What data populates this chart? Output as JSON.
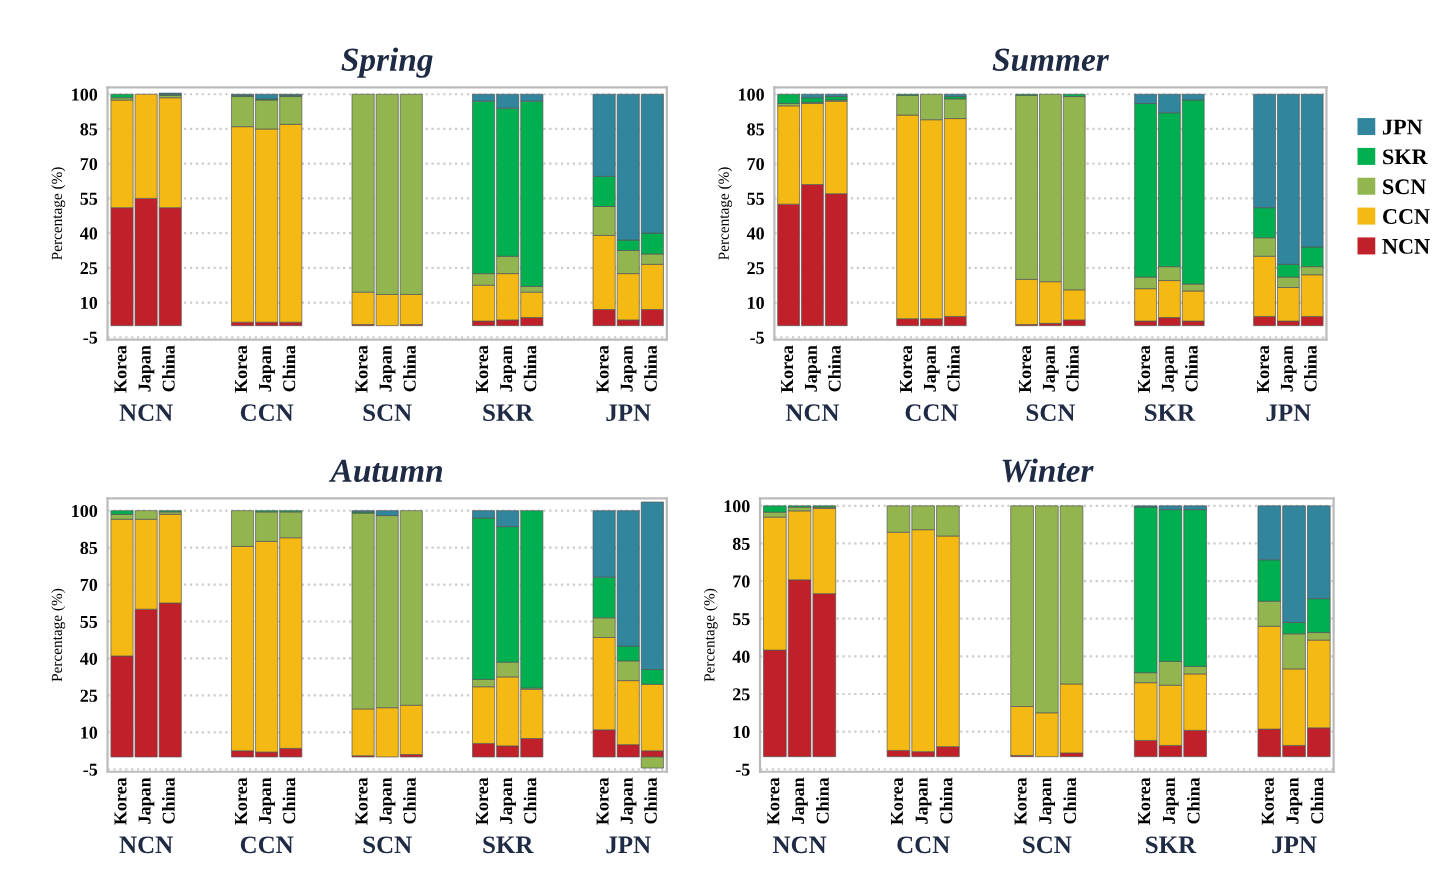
{
  "chart_data": [
    {
      "type": "bar",
      "stacked": true,
      "title": "Spring",
      "ylabel": "Percentage (%)",
      "ylim": [
        -6,
        103
      ],
      "yticks": [
        -5,
        10,
        25,
        40,
        55,
        70,
        85,
        100
      ],
      "grid": "y",
      "legend": false,
      "categories": [
        "Korea",
        "Japan",
        "China",
        null,
        null,
        "Korea",
        "Japan",
        "China",
        null,
        null,
        "Korea",
        "Japan",
        "China",
        null,
        null,
        "Korea",
        "Japan",
        "China",
        null,
        null,
        "Korea",
        "Japan",
        "China"
      ],
      "annotations": [
        "NCN",
        "CCN",
        "SCN",
        "SKR",
        "JPN"
      ],
      "series": [
        {
          "color": "#c0202a",
          "values": [
            51,
            55,
            51,
            null,
            null,
            1.5,
            1.5,
            1.5,
            null,
            null,
            0.5,
            0,
            0.5,
            null,
            null,
            2,
            2.5,
            3.5,
            null,
            null,
            7,
            2.5,
            7
          ]
        },
        {
          "color": "#f5b914",
          "values": [
            46.5,
            45,
            47.5,
            null,
            null,
            84.5,
            83.5,
            85.5,
            null,
            null,
            14,
            13.5,
            13,
            null,
            null,
            15.5,
            20,
            11,
            null,
            null,
            32,
            20,
            19.5
          ]
        },
        {
          "color": "#92b550",
          "values": [
            1,
            0,
            1,
            null,
            null,
            13,
            12.5,
            12,
            null,
            null,
            85.5,
            86.5,
            86.5,
            null,
            null,
            5,
            7.5,
            2.5,
            null,
            null,
            12.5,
            10,
            4.5
          ]
        },
        {
          "color": "#00b050",
          "values": [
            1.5,
            0,
            0.5,
            null,
            null,
            0.5,
            0.5,
            0.5,
            null,
            null,
            0,
            0,
            0,
            null,
            null,
            74.5,
            64,
            80,
            null,
            null,
            13,
            4.5,
            9
          ]
        },
        {
          "color": "#31859c",
          "values": [
            0,
            0,
            0.5,
            null,
            null,
            0.5,
            2,
            0.5,
            null,
            null,
            0,
            0,
            0,
            null,
            null,
            3,
            6,
            3,
            null,
            null,
            35.5,
            63,
            60
          ]
        }
      ]
    },
    {
      "type": "bar",
      "stacked": true,
      "title": "Summer",
      "ylabel": "Percentage (%)",
      "ylim": [
        -6,
        103
      ],
      "yticks": [
        -5,
        10,
        25,
        40,
        55,
        70,
        85,
        100
      ],
      "grid": "y",
      "legend": "right",
      "categories": [
        "Korea",
        "Japan",
        "China",
        null,
        null,
        "Korea",
        "Japan",
        "China",
        null,
        null,
        "Korea",
        "Japan",
        "China",
        null,
        null,
        "Korea",
        "Japan",
        "China",
        null,
        null,
        "Korea",
        "Japan",
        "China"
      ],
      "annotations": [
        "NCN",
        "CCN",
        "SCN",
        "SKR",
        "JPN"
      ],
      "series": [
        {
          "name": "NCN",
          "color": "#c0202a",
          "values": [
            52.5,
            61,
            57,
            null,
            null,
            3,
            3,
            4,
            null,
            null,
            0.5,
            1,
            2.5,
            null,
            null,
            2,
            3.5,
            2,
            null,
            null,
            4,
            2,
            4
          ]
        },
        {
          "name": "CCN",
          "color": "#f5b914",
          "values": [
            42.5,
            35,
            40,
            null,
            null,
            88,
            86,
            85.5,
            null,
            null,
            19.5,
            18,
            13,
            null,
            null,
            14,
            16,
            13,
            null,
            null,
            26,
            14.5,
            18
          ]
        },
        {
          "name": "SCN",
          "color": "#92b550",
          "values": [
            1,
            0.5,
            0.5,
            null,
            null,
            8.5,
            11,
            8.5,
            null,
            null,
            79.5,
            81,
            83.5,
            null,
            null,
            5,
            6,
            3,
            null,
            null,
            8,
            4.5,
            3.5
          ]
        },
        {
          "name": "SKR",
          "color": "#00b050",
          "values": [
            4,
            2,
            1.5,
            null,
            null,
            0.5,
            0,
            1,
            null,
            null,
            0.5,
            0,
            1,
            null,
            null,
            75,
            66.5,
            79.5,
            null,
            null,
            13,
            5.5,
            8.5
          ]
        },
        {
          "name": "JPN",
          "color": "#31859c",
          "values": [
            0,
            1.5,
            1,
            null,
            null,
            0,
            0,
            1,
            null,
            null,
            0,
            0,
            0,
            null,
            null,
            4,
            8,
            2.5,
            null,
            null,
            49,
            73.5,
            66
          ]
        }
      ]
    },
    {
      "type": "bar",
      "stacked": true,
      "title": "Autumn",
      "ylabel": "Percentage (%)",
      "ylim": [
        -6,
        105
      ],
      "yticks": [
        -5,
        10,
        25,
        40,
        55,
        70,
        85,
        100
      ],
      "grid": "y",
      "legend": false,
      "categories": [
        "Korea",
        "Japan",
        "China",
        null,
        null,
        "Korea",
        "Japan",
        "China",
        null,
        null,
        "Korea",
        "Japan",
        "China",
        null,
        null,
        "Korea",
        "Japan",
        "China",
        null,
        null,
        "Korea",
        "Japan",
        "China"
      ],
      "annotations": [
        "NCN",
        "CCN",
        "SCN",
        "SKR",
        "JPN"
      ],
      "series": [
        {
          "color": "#c0202a",
          "values": [
            41,
            60,
            62.5,
            null,
            null,
            2.5,
            2,
            3.5,
            null,
            null,
            0.5,
            0,
            1,
            null,
            null,
            5.5,
            4.5,
            7.5,
            null,
            null,
            11,
            5,
            2.5
          ]
        },
        {
          "color": "#f5b914",
          "values": [
            55.5,
            36.5,
            36,
            null,
            null,
            83,
            85.5,
            85.5,
            null,
            null,
            19,
            20,
            20,
            null,
            null,
            23,
            28,
            20,
            null,
            null,
            37.5,
            26,
            27
          ]
        },
        {
          "color": "#92b550",
          "values": [
            2,
            3.5,
            1,
            null,
            null,
            14.5,
            12,
            10.5,
            null,
            null,
            79.5,
            78,
            79,
            null,
            null,
            3,
            6,
            0.5,
            null,
            null,
            8,
            8,
            -4.5
          ]
        },
        {
          "color": "#00b050",
          "values": [
            1.5,
            0,
            0.5,
            null,
            null,
            0,
            0.5,
            0.5,
            null,
            null,
            0.5,
            0,
            0,
            null,
            null,
            65.5,
            55,
            72,
            null,
            null,
            16.5,
            6,
            6
          ]
        },
        {
          "color": "#31859c",
          "values": [
            0,
            0,
            0,
            null,
            null,
            0,
            0,
            0,
            null,
            null,
            0.5,
            2,
            0,
            null,
            null,
            3,
            6.5,
            0,
            null,
            null,
            27,
            55,
            68
          ]
        }
      ]
    },
    {
      "type": "bar",
      "stacked": true,
      "title": "Winter",
      "ylabel": "Percentage (%)",
      "ylim": [
        -6,
        103
      ],
      "yticks": [
        -5,
        10,
        25,
        40,
        55,
        70,
        85,
        100
      ],
      "grid": "y",
      "legend": false,
      "categories": [
        "Korea",
        "Japan",
        "China",
        null,
        null,
        "Korea",
        "Japan",
        "China",
        null,
        null,
        "Korea",
        "Japan",
        "China",
        null,
        null,
        "Korea",
        "Japan",
        "China",
        null,
        null,
        "Korea",
        "Japan",
        "China"
      ],
      "annotations": [
        "NCN",
        "CCN",
        "SCN",
        "SKR",
        "JPN"
      ],
      "series": [
        {
          "color": "#c0202a",
          "values": [
            42.5,
            70.5,
            65,
            null,
            null,
            2.5,
            2,
            4,
            null,
            null,
            0.5,
            0,
            1.5,
            null,
            null,
            6.5,
            4.5,
            10.5,
            null,
            null,
            11,
            4.5,
            11.5
          ]
        },
        {
          "color": "#f5b914",
          "values": [
            53,
            27.5,
            34,
            null,
            null,
            87,
            88.5,
            84,
            null,
            null,
            19.5,
            17.5,
            27.5,
            null,
            null,
            23,
            24,
            22.5,
            null,
            null,
            41,
            30.5,
            35
          ]
        },
        {
          "color": "#92b550",
          "values": [
            2,
            1.5,
            0.5,
            null,
            null,
            10.5,
            9.5,
            12,
            null,
            null,
            80,
            82.5,
            71,
            null,
            null,
            4,
            9.5,
            3,
            null,
            null,
            10,
            14,
            3
          ]
        },
        {
          "color": "#00b050",
          "values": [
            2.5,
            0.5,
            0.5,
            null,
            null,
            0,
            0,
            0,
            null,
            null,
            0,
            0,
            0,
            null,
            null,
            66,
            60.5,
            62.5,
            null,
            null,
            16.5,
            4.5,
            13.5
          ]
        },
        {
          "color": "#31859c",
          "values": [
            0,
            0,
            0,
            null,
            null,
            0,
            0,
            0,
            null,
            null,
            0,
            0,
            0,
            null,
            null,
            0.5,
            1.5,
            1.5,
            null,
            null,
            21.5,
            46.5,
            37
          ]
        }
      ]
    }
  ]
}
